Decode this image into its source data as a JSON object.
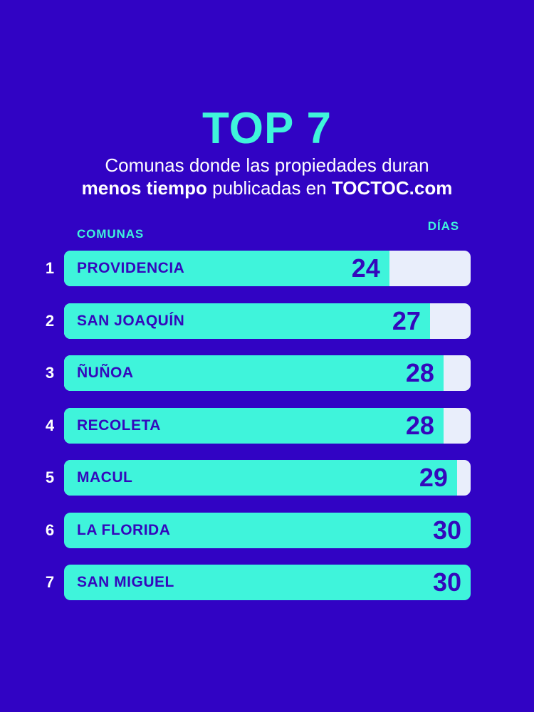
{
  "theme": {
    "background_color": "#3103C4",
    "accent_color": "#3FF4DB",
    "track_color": "#E9EEFB",
    "bar_text_color": "#3408BC",
    "subtitle_color": "#FFFFFF"
  },
  "title": "TOP 7",
  "subtitle": {
    "line1": "Comunas donde las propiedades duran",
    "line2_bold1": "menos tiempo",
    "line2_regular": "publicadas en",
    "line2_bold2": "TOCTOC.com"
  },
  "chart_data": {
    "type": "bar",
    "orientation": "horizontal",
    "title": "TOP 7 — Comunas donde las propiedades duran menos tiempo publicadas en TOCTOC.com",
    "column_headers": {
      "category": "COMUNAS",
      "value": "DÍAS"
    },
    "categories": [
      "PROVIDENCIA",
      "SAN JOAQUÍN",
      "ÑUÑOA",
      "RECOLETA",
      "MACUL",
      "LA FLORIDA",
      "SAN MIGUEL"
    ],
    "ranks": [
      1,
      2,
      3,
      4,
      5,
      6,
      7
    ],
    "values": [
      24,
      27,
      28,
      28,
      29,
      30,
      30
    ],
    "value_unit": "días",
    "xlim": [
      0,
      30
    ],
    "grid": false,
    "legend": false,
    "bar_color": "#3FF4DB",
    "track_color": "#E9EEFB"
  }
}
